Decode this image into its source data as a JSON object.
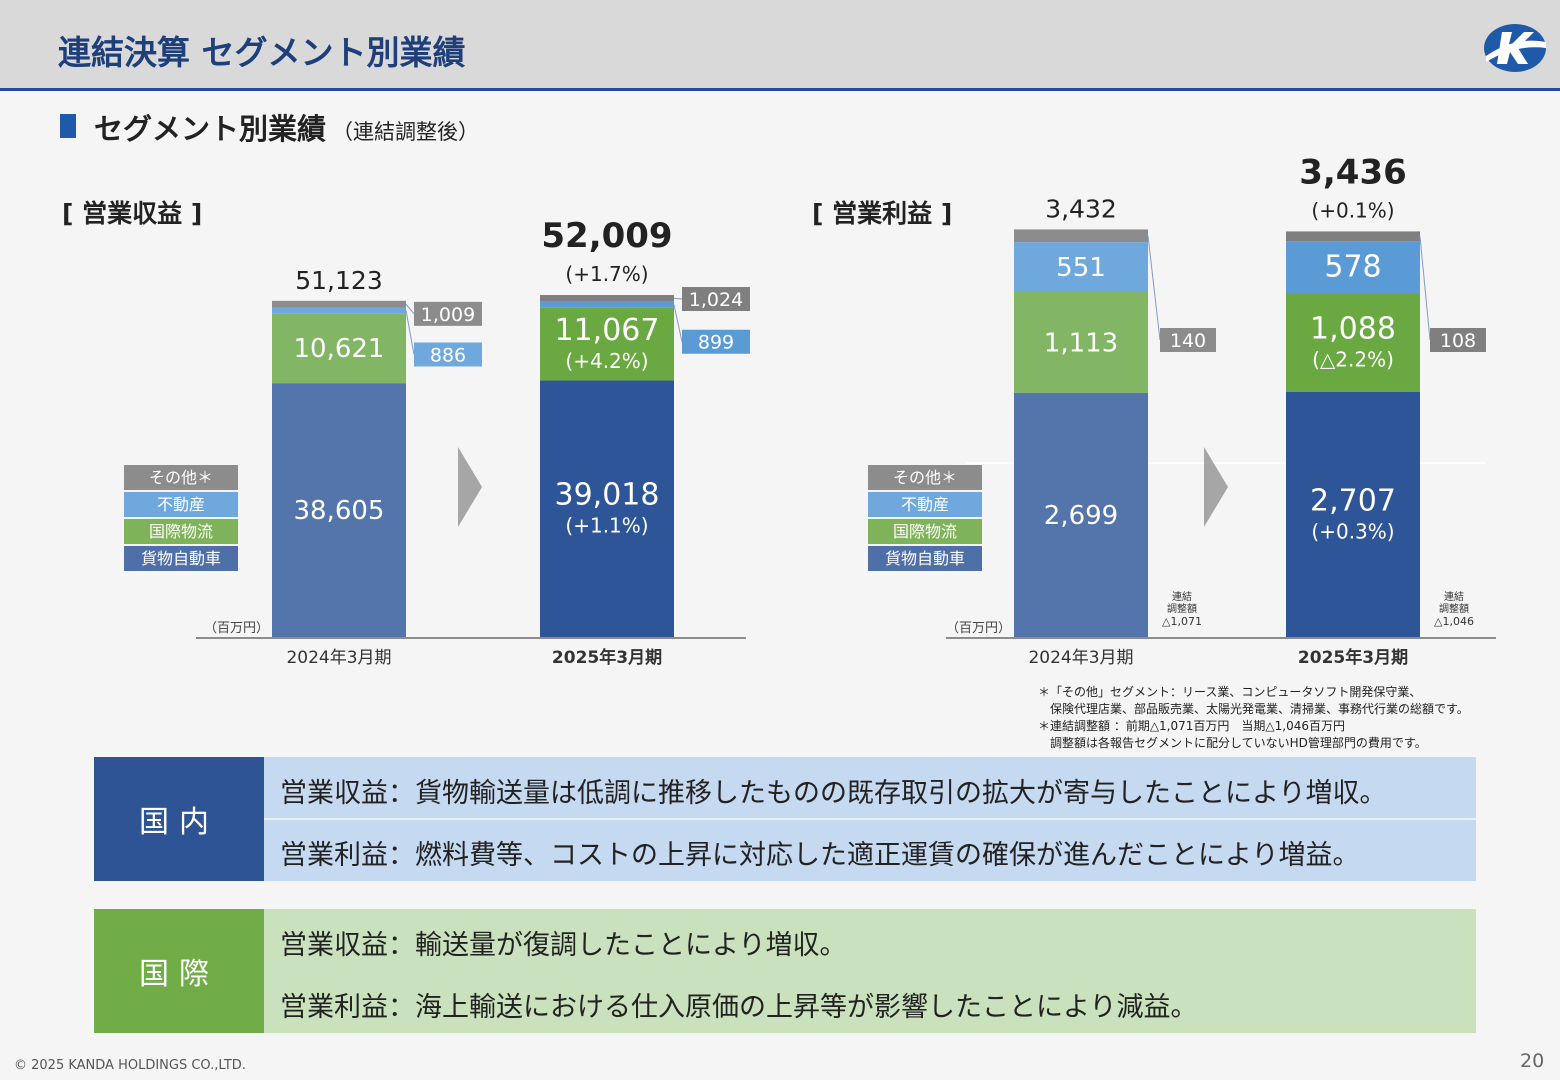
{
  "header": {
    "title": "連結決算 セグメント別業績"
  },
  "section": {
    "title": "セグメント別業績",
    "subtitle": "（連結調整後）"
  },
  "legend": {
    "items": [
      {
        "label": "その他＊",
        "color": "#8c8c8c"
      },
      {
        "label": "不動産",
        "color": "#6fa8dc"
      },
      {
        "label": "国際物流",
        "color": "#7fb35a"
      },
      {
        "label": "貨物自動車",
        "color": "#4f6fa8"
      }
    ]
  },
  "unit": "（百万円）",
  "chart_data": [
    {
      "type": "bar",
      "title": "[ 営業収益 ]",
      "categories": [
        "2024年3月期",
        "2025年3月期"
      ],
      "ylim": [
        0,
        52009
      ],
      "totals": [
        "51,123",
        "52,009"
      ],
      "total_changes": [
        "",
        "(+1.7%)"
      ],
      "series": [
        {
          "name": "貨物自動車",
          "values": [
            38605,
            39018
          ],
          "labels": [
            "38,605",
            "39,018"
          ],
          "changes": [
            "",
            "(+1.1%)"
          ]
        },
        {
          "name": "国際物流",
          "values": [
            10621,
            11067
          ],
          "labels": [
            "10,621",
            "11,067"
          ],
          "changes": [
            "",
            "(+4.2%)"
          ]
        },
        {
          "name": "不動産",
          "values": [
            886,
            899
          ],
          "labels": [
            "886",
            "899"
          ],
          "changes": [
            "",
            ""
          ]
        },
        {
          "name": "その他＊",
          "values": [
            1009,
            1024
          ],
          "labels": [
            "1,009",
            "1,024"
          ],
          "changes": [
            "",
            ""
          ]
        }
      ]
    },
    {
      "type": "bar",
      "title": "[ 営業利益 ]",
      "categories": [
        "2024年3月期",
        "2025年3月期"
      ],
      "ylim": [
        0,
        3436
      ],
      "totals": [
        "3,432",
        "3,436"
      ],
      "total_changes": [
        "",
        "(+0.1%)"
      ],
      "adjustment_label": [
        "連結",
        "調整額"
      ],
      "adjustments": [
        "△1,071",
        "△1,046"
      ],
      "series": [
        {
          "name": "貨物自動車",
          "values": [
            2699,
            2707
          ],
          "labels": [
            "2,699",
            "2,707"
          ],
          "changes": [
            "",
            "(+0.3%)"
          ]
        },
        {
          "name": "国際物流",
          "values": [
            1113,
            1088
          ],
          "labels": [
            "1,113",
            "1,088"
          ],
          "changes": [
            "",
            "(△2.2%)"
          ]
        },
        {
          "name": "不動産",
          "values": [
            551,
            578
          ],
          "labels": [
            "551",
            "578"
          ],
          "changes": [
            "",
            ""
          ]
        },
        {
          "name": "その他＊",
          "values": [
            140,
            108
          ],
          "labels": [
            "140",
            "108"
          ],
          "changes": [
            "",
            ""
          ]
        }
      ]
    }
  ],
  "notes": [
    "＊「その他」セグメント：リース業、コンピュータソフト開発保守業、",
    "　保険代理店業、部品販売業、太陽光発電業、清掃業、事務代行業の総額です。",
    "＊連結調整額 ：前期△1,071百万円　当期△1,046百万円",
    "　調整額は各報告セグメントに配分していないHD管理部門の費用です。"
  ],
  "panels": [
    {
      "label": "国内",
      "label_color": "#2f5496",
      "body_color": "#c5d9f1",
      "lines": [
        "営業収益：貨物輸送量は低調に推移したものの既存取引の拡大が寄与したことにより増収。",
        "営業利益：燃料費等、コストの上昇に対応した適正運賃の確保が進んだことにより増益。"
      ]
    },
    {
      "label": "国際",
      "label_color": "#70ad47",
      "body_color": "#c9e2bd",
      "lines": [
        "営業収益：輸送量が復調したことにより増収。",
        "営業利益：海上輸送における仕入原価の上昇等が影響したことにより減益。"
      ]
    }
  ],
  "footer": {
    "copyright": "© 2025 KANDA HOLDINGS CO.,LTD.",
    "page": "20"
  }
}
